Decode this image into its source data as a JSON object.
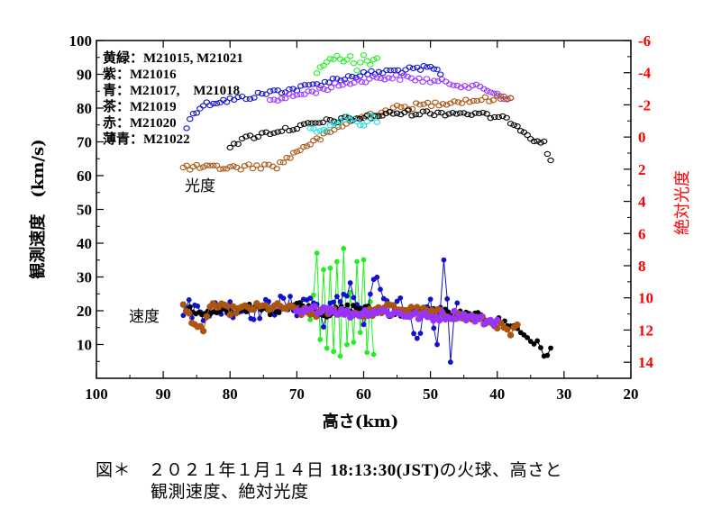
{
  "chart_data": {
    "type": "scatter",
    "x_axis": {
      "label": "高さ(km)",
      "range": [
        100,
        20
      ],
      "ticks": [
        "100",
        "90",
        "80",
        "70",
        "60",
        "50",
        "40",
        "30",
        "20"
      ]
    },
    "y_axis_left": {
      "label": "観測速度　(km/s)",
      "range": [
        0,
        100
      ],
      "ticks": [
        "10",
        "20",
        "30",
        "40",
        "50",
        "60",
        "70",
        "80",
        "90",
        "100"
      ]
    },
    "y_axis_right": {
      "label": "絶対光度",
      "range": [
        -6,
        15
      ],
      "inverted": true,
      "ticks": [
        "-6",
        "-4",
        "-2",
        "0",
        "2",
        "4",
        "6",
        "8",
        "10",
        "12",
        "14"
      ],
      "color": "#ff0000"
    },
    "legend": [
      "黄緑：M21015, M21021",
      "紫：M21016",
      "青：M21017,　M21018",
      "茶：M21019",
      "赤：M21020",
      "薄青：M21022"
    ],
    "annotations": [
      "光度",
      "速度"
    ],
    "series_colors": {
      "yellow_green": "#22ee22",
      "purple": "#9933ff",
      "blue": "#1111cc",
      "brown": "#aa5511",
      "black": "#000000",
      "light_blue": "#22dddd"
    },
    "magnitude_series": [
      {
        "name": "M21017/M21018 (青)",
        "color": "#1111cc",
        "points": [
          [
            86.5,
            -0.6
          ],
          [
            85.5,
            -1.5
          ],
          [
            84,
            -2
          ],
          [
            82,
            -2.2
          ],
          [
            80,
            -2.3
          ],
          [
            77,
            -2.5
          ],
          [
            74,
            -2.8
          ],
          [
            70,
            -3
          ],
          [
            67,
            -3.3
          ],
          [
            64,
            -3.6
          ],
          [
            60,
            -3.9
          ],
          [
            56,
            -4.1
          ],
          [
            52,
            -4.2
          ],
          [
            50,
            -4.3
          ],
          [
            48.5,
            -4
          ]
        ]
      },
      {
        "name": "M21016 (紫)",
        "color": "#9933ff",
        "points": [
          [
            74,
            -2.3
          ],
          [
            70,
            -2.6
          ],
          [
            66,
            -3
          ],
          [
            62,
            -3.4
          ],
          [
            58,
            -3.7
          ],
          [
            54,
            -3.7
          ],
          [
            50,
            -3.5
          ],
          [
            46,
            -3.3
          ],
          [
            42,
            -3
          ],
          [
            40,
            -2.7
          ],
          [
            38,
            -2.3
          ]
        ]
      },
      {
        "name": "M21015/M21021 (黄緑)",
        "color": "#22ee22",
        "points": [
          [
            67,
            -4
          ],
          [
            66,
            -4.5
          ],
          [
            65,
            -4.8
          ],
          [
            64,
            -5
          ],
          [
            63,
            -4.6
          ],
          [
            62,
            -4.9
          ],
          [
            61,
            -4.3
          ],
          [
            60,
            -5.1
          ],
          [
            59,
            -4.6
          ],
          [
            58,
            -4.9
          ]
        ]
      },
      {
        "name": "M21019 (茶)",
        "color": "#aa5511",
        "points": [
          [
            87,
            1.9
          ],
          [
            85,
            1.9
          ],
          [
            83,
            1.9
          ],
          [
            81,
            1.9
          ],
          [
            79,
            1.9
          ],
          [
            76,
            1.8
          ],
          [
            73,
            1.8
          ],
          [
            71,
            1.2
          ],
          [
            69,
            0.6
          ],
          [
            67,
            0.2
          ],
          [
            65,
            -0.3
          ],
          [
            62,
            -1
          ],
          [
            59,
            -1.4
          ],
          [
            55,
            -1.8
          ],
          [
            51,
            -2
          ],
          [
            47,
            -2.2
          ],
          [
            43,
            -2.3
          ],
          [
            40,
            -2.4
          ],
          [
            38,
            -2.5
          ]
        ]
      },
      {
        "name": "M21020 (黒)",
        "color": "#000000",
        "points": [
          [
            80,
            0.5
          ],
          [
            77,
            0
          ],
          [
            74,
            -0.3
          ],
          [
            70,
            -0.6
          ],
          [
            65,
            -1
          ],
          [
            60,
            -1.2
          ],
          [
            55,
            -1.5
          ],
          [
            50,
            -1.5
          ],
          [
            45,
            -1.5
          ],
          [
            41,
            -1.3
          ],
          [
            38,
            -1
          ],
          [
            36,
            -0.4
          ],
          [
            35,
            0
          ],
          [
            33,
            0.4
          ],
          [
            32,
            1.5
          ]
        ]
      },
      {
        "name": "M21022 (薄青)",
        "color": "#22dddd",
        "points": [
          [
            68,
            -0.6
          ],
          [
            66,
            -0.3
          ],
          [
            64,
            -0.9
          ],
          [
            62,
            -1.2
          ],
          [
            60,
            -0.8
          ],
          [
            59,
            -1.3
          ],
          [
            58,
            -1
          ]
        ]
      }
    ],
    "velocity_series": [
      {
        "name": "M21015/M21021 (黄緑)",
        "color": "#22ee22",
        "points": [
          [
            68,
            20
          ],
          [
            67,
            35
          ],
          [
            66.5,
            12
          ],
          [
            66,
            30
          ],
          [
            65.5,
            8
          ],
          [
            65,
            34
          ],
          [
            64.5,
            10
          ],
          [
            64,
            37
          ],
          [
            63.5,
            6
          ],
          [
            63,
            38
          ],
          [
            62.5,
            9
          ],
          [
            62,
            28
          ],
          [
            61.5,
            12
          ],
          [
            61,
            36
          ],
          [
            60.5,
            16
          ],
          [
            60,
            37
          ],
          [
            59.5,
            10
          ],
          [
            59,
            24
          ],
          [
            58.5,
            5
          ]
        ]
      },
      {
        "name": "M21017/M21018 (青)",
        "color": "#1111cc",
        "points": [
          [
            87,
            21
          ],
          [
            84,
            20
          ],
          [
            80,
            21
          ],
          [
            76,
            20
          ],
          [
            72,
            22
          ],
          [
            70,
            21
          ],
          [
            68,
            24
          ],
          [
            66,
            18
          ],
          [
            64,
            22
          ],
          [
            62,
            28
          ],
          [
            60,
            16
          ],
          [
            58,
            30
          ],
          [
            56,
            18
          ],
          [
            54,
            22
          ],
          [
            52,
            12
          ],
          [
            50,
            26
          ],
          [
            49,
            8
          ],
          [
            48,
            38
          ],
          [
            47,
            6
          ],
          [
            46,
            24
          ]
        ]
      },
      {
        "name": "M21020 (黒)",
        "color": "#000000",
        "points": [
          [
            86,
            20
          ],
          [
            82,
            19
          ],
          [
            78,
            21
          ],
          [
            74,
            20
          ],
          [
            70,
            22
          ],
          [
            66,
            19
          ],
          [
            62,
            21
          ],
          [
            58,
            20
          ],
          [
            54,
            19
          ],
          [
            50,
            20
          ],
          [
            46,
            19
          ],
          [
            42,
            18
          ],
          [
            38,
            16
          ],
          [
            36,
            13
          ],
          [
            34,
            10
          ],
          [
            33,
            7
          ],
          [
            32,
            8.5
          ]
        ]
      },
      {
        "name": "M21019 (茶)",
        "color": "#aa5511",
        "points": [
          [
            87,
            21
          ],
          [
            84,
            13
          ],
          [
            83,
            22
          ],
          [
            80,
            20
          ],
          [
            76,
            21
          ],
          [
            72,
            21
          ],
          [
            68,
            19
          ],
          [
            64,
            20
          ],
          [
            60,
            19
          ],
          [
            56,
            21
          ],
          [
            52,
            20
          ],
          [
            48,
            19
          ],
          [
            44,
            18
          ],
          [
            40,
            16
          ],
          [
            38,
            13
          ],
          [
            37,
            15
          ]
        ]
      },
      {
        "name": "M21016 (紫)",
        "color": "#9933ff",
        "points": [
          [
            70,
            19
          ],
          [
            66,
            21
          ],
          [
            62,
            19
          ],
          [
            58,
            20
          ],
          [
            54,
            19
          ],
          [
            50,
            18
          ],
          [
            46,
            19
          ],
          [
            42,
            17
          ],
          [
            40,
            17
          ]
        ]
      }
    ]
  },
  "caption": {
    "line1_prefix": "図＊　２０２１年１月１４日",
    "line1_time": "18:13:30(JST)",
    "line1_suffix": "の火球、高さと",
    "line2": "観測速度、絶対光度"
  }
}
